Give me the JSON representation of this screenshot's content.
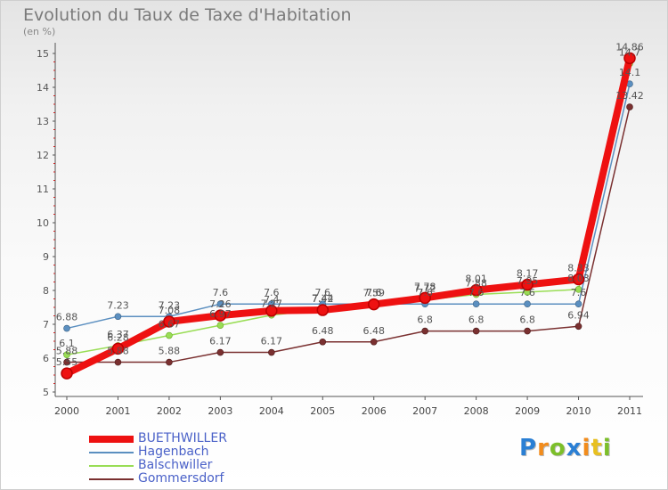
{
  "title": "Evolution du Taux de Taxe d'Habitation",
  "subtitle": "(en %)",
  "brand": {
    "letters": [
      "P",
      "r",
      "o",
      "x",
      "i",
      "t",
      "i"
    ],
    "letter_colors": [
      "#2a7fd4",
      "#f28c1c",
      "#7cbf2a",
      "#2a7fd4",
      "#f28c1c",
      "#e8c020",
      "#7cbf2a"
    ]
  },
  "chart_data": {
    "type": "line",
    "x": [
      "2000",
      "2001",
      "2002",
      "2003",
      "2004",
      "2005",
      "2006",
      "2007",
      "2008",
      "2009",
      "2010",
      "2011"
    ],
    "ylim": [
      5,
      15
    ],
    "yticks": [
      5,
      6,
      7,
      8,
      9,
      10,
      11,
      12,
      13,
      14,
      15
    ],
    "grid": false,
    "legend_position": "bottom-left",
    "series": [
      {
        "name": "BUETHWILLER",
        "color": "#ee1111",
        "values": [
          5.55,
          6.28,
          7.08,
          7.26,
          7.4,
          7.42,
          7.59,
          7.78,
          8.01,
          8.17,
          8.33,
          14.86
        ],
        "labels": [
          "5.55",
          "6.28",
          "7.08",
          "7.26",
          "7.4",
          "7.42",
          "7.59",
          "7.78",
          "8.01",
          "8.17",
          "8.33",
          "14.86"
        ]
      },
      {
        "name": "Hagenbach",
        "color": "#5b8fc0",
        "values": [
          6.88,
          7.23,
          7.23,
          7.6,
          7.6,
          7.6,
          7.6,
          7.6,
          7.6,
          7.6,
          7.6,
          14.1
        ],
        "labels": [
          "6.88",
          "7.23",
          "7.23",
          "7.6",
          "7.6",
          "7.6",
          "7.6",
          "7.6",
          "7.6",
          "7.6",
          "7.6",
          "14.1"
        ]
      },
      {
        "name": "Balschwiller",
        "color": "#99dd55",
        "values": [
          6.1,
          6.37,
          6.67,
          6.97,
          7.27,
          7.44,
          7.6,
          7.72,
          7.88,
          7.95,
          8.03,
          14.7
        ],
        "labels": [
          "6.1",
          "6.37",
          "6.67",
          "6.97",
          "7.27",
          "7.44",
          "7.6",
          "7.72",
          "7.88",
          "7.95",
          "8.03",
          "14.7"
        ]
      },
      {
        "name": "Gommersdorf",
        "color": "#7a3030",
        "values": [
          5.88,
          5.88,
          5.88,
          6.17,
          6.17,
          6.48,
          6.48,
          6.8,
          6.8,
          6.8,
          6.94,
          13.42
        ],
        "labels": [
          "5.88",
          "5.88",
          "5.88",
          "6.17",
          "6.17",
          "6.48",
          "6.48",
          "6.8",
          "6.8",
          "6.8",
          "6.94",
          "13.42"
        ]
      }
    ]
  }
}
